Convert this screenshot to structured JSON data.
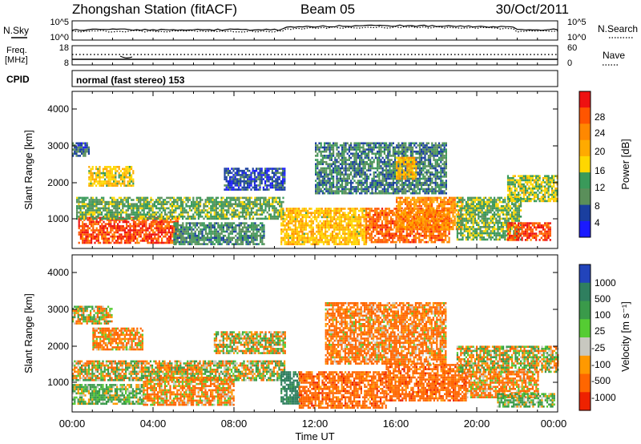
{
  "header": {
    "station": "Zhongshan Station (fitACF)",
    "beam": "Beam 05",
    "date": "30/Oct/2011"
  },
  "noise_panel": {
    "left_label": "N.Sky",
    "right_label": "N.Search",
    "y_ticks_left": [
      "10^5",
      "10^0"
    ],
    "y_ticks_right": [
      "10^5",
      "10^0"
    ]
  },
  "freq_panel": {
    "left_label_lines": [
      "Freq.",
      "[MHz]"
    ],
    "right_label": "Nave",
    "y_ticks_left": [
      "18",
      "8"
    ],
    "y_ticks_right": [
      "60",
      "0"
    ]
  },
  "cpid_panel": {
    "label": "CPID",
    "value_text": "normal (fast stereo) 153"
  },
  "power_panel": {
    "ylabel": "Slant Range [km]",
    "y_ticks": [
      "4000",
      "3000",
      "2000",
      "1000"
    ],
    "colorbar_label": "Power [dB]",
    "colorbar_ticks": [
      "28",
      "24",
      "20",
      "16",
      "12",
      "8",
      "4"
    ],
    "colorbar_colors": [
      "#ee1111",
      "#ff5500",
      "#ff8800",
      "#ffaa00",
      "#ffd700",
      "#3a9a5a",
      "#5a8f5a",
      "#1a3f9f",
      "#1a1aff"
    ]
  },
  "velocity_panel": {
    "ylabel": "Slant Range [km]",
    "y_ticks": [
      "4000",
      "3000",
      "2000",
      "1000"
    ],
    "colorbar_label": "Velocity [m s⁻¹]",
    "colorbar_ticks": [
      "1000",
      "500",
      "100",
      "25",
      "-25",
      "-100",
      "-500",
      "-1000"
    ],
    "colorbar_colors": [
      "#2244bb",
      "#2f7f5f",
      "#3a9a4a",
      "#55cc33",
      "#c8c8c0",
      "#ff9900",
      "#ff6600",
      "#ee2200"
    ]
  },
  "x_axis": {
    "label": "Time UT",
    "ticks": [
      "00:00",
      "04:00",
      "08:00",
      "12:00",
      "16:00",
      "20:00",
      "00:00"
    ]
  },
  "chart_data": [
    {
      "type": "heatmap",
      "title": "Zhongshan Station (fitACF) Beam 05 30/Oct/2011",
      "xlabel": "Time UT",
      "ylabel": "Slant Range [km]",
      "colorbar_label": "Power [dB]",
      "xlim_hours": [
        0,
        24
      ],
      "ylim": [
        180,
        4500
      ],
      "clim": [
        0,
        30
      ],
      "regions": [
        {
          "x": [
            0.3,
            5.2
          ],
          "y": [
            350,
            1050
          ],
          "value": 26
        },
        {
          "x": [
            0.2,
            10.4
          ],
          "y": [
            1000,
            1600
          ],
          "value": 11
        },
        {
          "x": [
            0.8,
            3.0
          ],
          "y": [
            1900,
            2450
          ],
          "value": 16
        },
        {
          "x": [
            0.0,
            0.8
          ],
          "y": [
            2700,
            3100
          ],
          "value": 6
        },
        {
          "x": [
            5.0,
            9.5
          ],
          "y": [
            300,
            900
          ],
          "value": 9
        },
        {
          "x": [
            10.3,
            14.5
          ],
          "y": [
            300,
            1300
          ],
          "value": 17
        },
        {
          "x": [
            14.5,
            18.6
          ],
          "y": [
            350,
            1300
          ],
          "value": 24
        },
        {
          "x": [
            16.0,
            19.3
          ],
          "y": [
            700,
            1600
          ],
          "value": 21
        },
        {
          "x": [
            19.0,
            22.2
          ],
          "y": [
            400,
            1600
          ],
          "value": 12
        },
        {
          "x": [
            21.5,
            23.6
          ],
          "y": [
            400,
            900
          ],
          "value": 26
        },
        {
          "x": [
            21.5,
            24.0
          ],
          "y": [
            1500,
            2200
          ],
          "value": 14
        },
        {
          "x": [
            7.5,
            10.5
          ],
          "y": [
            1800,
            2400
          ],
          "value": 5
        },
        {
          "x": [
            12.0,
            18.5
          ],
          "y": [
            1700,
            3100
          ],
          "value": 8
        },
        {
          "x": [
            16.0,
            17.0
          ],
          "y": [
            2100,
            2700
          ],
          "value": 18
        }
      ]
    },
    {
      "type": "heatmap",
      "title": "Zhongshan Station (fitACF) Beam 05 30/Oct/2011",
      "xlabel": "Time UT",
      "ylabel": "Slant Range [km]",
      "colorbar_label": "Velocity [m s⁻¹]",
      "xlim_hours": [
        0,
        24
      ],
      "ylim": [
        180,
        4500
      ],
      "clim": [
        -1000,
        1000
      ],
      "regions": [
        {
          "x": [
            0.0,
            10.5
          ],
          "y": [
            1050,
            1600
          ],
          "value": 0
        },
        {
          "x": [
            0.0,
            3.5
          ],
          "y": [
            400,
            950
          ],
          "value": 150
        },
        {
          "x": [
            3.5,
            8.0
          ],
          "y": [
            400,
            1150
          ],
          "value": -150
        },
        {
          "x": [
            1.0,
            3.5
          ],
          "y": [
            1900,
            2500
          ],
          "value": -150
        },
        {
          "x": [
            0.0,
            2.0
          ],
          "y": [
            2600,
            3100
          ],
          "value": 0
        },
        {
          "x": [
            7.0,
            10.5
          ],
          "y": [
            1800,
            2400
          ],
          "value": 0
        },
        {
          "x": [
            10.3,
            11.2
          ],
          "y": [
            400,
            1300
          ],
          "value": 700
        },
        {
          "x": [
            11.2,
            15.5
          ],
          "y": [
            300,
            1300
          ],
          "value": -300
        },
        {
          "x": [
            15.5,
            19.5
          ],
          "y": [
            500,
            1500
          ],
          "value": -300
        },
        {
          "x": [
            12.5,
            18.5
          ],
          "y": [
            1500,
            3200
          ],
          "value": -200
        },
        {
          "x": [
            19.0,
            24.0
          ],
          "y": [
            1300,
            2000
          ],
          "value": 0
        },
        {
          "x": [
            19.5,
            23.0
          ],
          "y": [
            600,
            1300
          ],
          "value": -150
        },
        {
          "x": [
            21.0,
            23.8
          ],
          "y": [
            300,
            700
          ],
          "value": 150
        }
      ]
    }
  ]
}
